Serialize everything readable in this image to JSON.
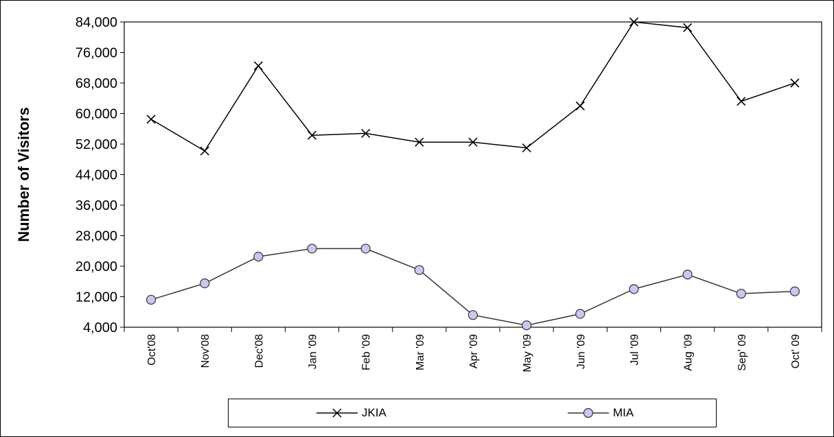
{
  "chart_data": {
    "type": "line",
    "categories": [
      "Oct'08",
      "Nov'08",
      "Dec'08",
      "Jan '09",
      "Feb '09",
      "Mar '09",
      "Apr '09",
      "May '09",
      "Jun '09",
      "Jul '09",
      "Aug '09",
      "Sep' 09",
      "Oct' 09"
    ],
    "series": [
      {
        "name": "JKIA",
        "marker": "x",
        "color": "#000000",
        "values": [
          58500,
          50200,
          72500,
          54300,
          54800,
          52500,
          52500,
          51000,
          62000,
          84000,
          82500,
          63200,
          68000
        ]
      },
      {
        "name": "MIA",
        "marker": "circle",
        "color": "#333333",
        "marker_fill": "#c8c8f0",
        "values": [
          11200,
          15500,
          22500,
          24600,
          24600,
          19000,
          7200,
          4500,
          7500,
          14000,
          17800,
          12800,
          13400
        ]
      }
    ],
    "title": "",
    "xlabel": "",
    "ylabel": "Number of Visitors",
    "ylim": [
      4000,
      84000
    ],
    "yticks": [
      "4,000",
      "12,000",
      "20,000",
      "28,000",
      "36,000",
      "44,000",
      "52,000",
      "60,000",
      "68,000",
      "76,000",
      "84,000"
    ],
    "grid": false,
    "legend": "bottom"
  }
}
